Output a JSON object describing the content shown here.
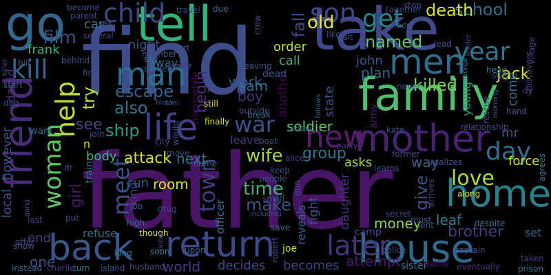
{
  "words": [
    {
      "text": "father",
      "color": "#471466"
    },
    {
      "text": "find",
      "color": "#3d4e8a"
    },
    {
      "text": "take",
      "color": "#3f4889"
    },
    {
      "text": "tell",
      "color": "#2fb47c"
    },
    {
      "text": "go",
      "color": "#31688e"
    },
    {
      "text": "family",
      "color": "#4ac16d"
    },
    {
      "text": "friend",
      "color": "#472c7a"
    },
    {
      "text": "mother",
      "color": "#482374"
    },
    {
      "text": "house",
      "color": "#2f6b8e"
    },
    {
      "text": "return",
      "color": "#3e4989"
    },
    {
      "text": "back",
      "color": "#38588c"
    },
    {
      "text": "home",
      "color": "#26828e"
    },
    {
      "text": "men",
      "color": "#2e6e8e"
    },
    {
      "text": "life",
      "color": "#424086"
    },
    {
      "text": "new",
      "color": "#5a1a6e"
    },
    {
      "text": "man",
      "color": "#2d708e"
    },
    {
      "text": "help",
      "color": "#c2df23"
    },
    {
      "text": "woman",
      "color": "#5cc863"
    },
    {
      "text": "kill",
      "color": "#31678e"
    },
    {
      "text": "child",
      "color": "#3f4788"
    },
    {
      "text": "son",
      "color": "#404588"
    },
    {
      "text": "get",
      "color": "#24878e"
    },
    {
      "text": "year",
      "color": "#2a788e"
    },
    {
      "text": "day",
      "color": "#2d718e"
    },
    {
      "text": "love",
      "color": "#addc30"
    },
    {
      "text": "later",
      "color": "#46327e"
    },
    {
      "text": "war",
      "color": "#3b518b"
    },
    {
      "text": "town",
      "color": "#443983"
    },
    {
      "text": "meet",
      "color": "#3a538b"
    },
    {
      "text": "school",
      "color": "#2c728e"
    },
    {
      "text": "death",
      "color": "#d8e219"
    },
    {
      "text": "jack",
      "color": "#d2e21b"
    },
    {
      "text": "film",
      "color": "#3b528b"
    },
    {
      "text": "fall",
      "color": "#3e4a89"
    },
    {
      "text": "old",
      "color": "#e7e419"
    },
    {
      "text": "named",
      "color": "#5ec962"
    },
    {
      "text": "killed",
      "color": "#7ad151"
    },
    {
      "text": "escape",
      "color": "#33628d"
    },
    {
      "text": "begin",
      "color": "#472f7d"
    },
    {
      "text": "try",
      "color": "#b5de2b"
    },
    {
      "text": "also",
      "color": "#29798e"
    },
    {
      "text": "see",
      "color": "#414487"
    },
    {
      "text": "ship",
      "color": "#1f9e89"
    },
    {
      "text": "wife",
      "color": "#a2da37"
    },
    {
      "text": "time",
      "color": "#35b779"
    },
    {
      "text": "make",
      "color": "#3b528b"
    },
    {
      "text": "give",
      "color": "#3b528b"
    },
    {
      "text": "girl",
      "color": "#481a6c"
    },
    {
      "text": "attack",
      "color": "#dde318"
    },
    {
      "text": "work",
      "color": "#38598c"
    },
    {
      "text": "soldier",
      "color": "#5ec962"
    },
    {
      "text": "group",
      "color": "#2a788e"
    },
    {
      "text": "money",
      "color": "#90d743"
    },
    {
      "text": "brother",
      "color": "#443983"
    },
    {
      "text": "leaf",
      "color": "#27808e"
    },
    {
      "text": "come",
      "color": "#2e6f8e"
    },
    {
      "text": "force",
      "color": "#d0e11c"
    },
    {
      "text": "way",
      "color": "#34618d"
    },
    {
      "text": "world",
      "color": "#453781"
    },
    {
      "text": "attempt",
      "color": "#481f70"
    },
    {
      "text": "becomes",
      "color": "#424086"
    },
    {
      "text": "decides",
      "color": "#3e4c8a"
    },
    {
      "text": "next",
      "color": "#2c728e"
    },
    {
      "text": "room",
      "color": "#d8e219"
    },
    {
      "text": "run",
      "color": "#38598c"
    },
    {
      "text": "king",
      "color": "#3e4a89"
    },
    {
      "text": "leave",
      "color": "#453781"
    },
    {
      "text": "body",
      "color": "#35b779"
    },
    {
      "text": "boy",
      "color": "#46337f"
    },
    {
      "text": "sam",
      "color": "#2c728e"
    },
    {
      "text": "another",
      "color": "#440154"
    },
    {
      "text": "state",
      "color": "#3e4989"
    },
    {
      "text": "plan",
      "color": "#30698e"
    },
    {
      "text": "john",
      "color": "#39568c"
    },
    {
      "text": "call",
      "color": "#37b878"
    },
    {
      "text": "order",
      "color": "#bddf26"
    },
    {
      "text": "night",
      "color": "#39558c"
    },
    {
      "text": "frank",
      "color": "#35b779"
    },
    {
      "text": "david",
      "color": "#482878"
    },
    {
      "text": "however",
      "color": "#3b528b"
    },
    {
      "text": "local",
      "color": "#3b518b"
    },
    {
      "text": "end",
      "color": "#443a83"
    },
    {
      "text": "one",
      "color": "#3e4c8a"
    },
    {
      "text": "train",
      "color": "#2a788e"
    },
    {
      "text": "refuse",
      "color": "#2e6e8e"
    },
    {
      "text": "meanwhile",
      "color": "#440154"
    },
    {
      "text": "officer",
      "color": "#2c728e"
    },
    {
      "text": "fight",
      "color": "#3b528b"
    },
    {
      "text": "reveals",
      "color": "#31688e"
    },
    {
      "text": "daughter",
      "color": "#46337f"
    },
    {
      "text": "asks",
      "color": "#a5db36"
    },
    {
      "text": "young",
      "color": "#1f9e89"
    },
    {
      "text": "army",
      "color": "#481b6d"
    },
    {
      "text": "mr",
      "color": "#39568c"
    },
    {
      "text": "car",
      "color": "#2a788e"
    },
    {
      "text": "away",
      "color": "#2c728e"
    },
    {
      "text": "dead",
      "color": "#39568c"
    },
    {
      "text": "party",
      "color": "#472d7b"
    },
    {
      "text": "want",
      "color": "#2c718e"
    },
    {
      "text": "n",
      "color": "#d2e21b"
    },
    {
      "text": "set",
      "color": "#31688e"
    },
    {
      "text": "captain",
      "color": "#3e4989"
    },
    {
      "text": "police",
      "color": "#3e4a89"
    },
    {
      "text": "camp",
      "color": "#3b528b"
    },
    {
      "text": "sister",
      "color": "#2c728e"
    },
    {
      "text": "battle",
      "color": "#471365"
    },
    {
      "text": "prison",
      "color": "#2a788e"
    },
    {
      "text": "eventually",
      "color": "#46337f"
    },
    {
      "text": "taken",
      "color": "#443a83"
    },
    {
      "text": "joe",
      "color": "#b5de2b"
    },
    {
      "text": "robert",
      "color": "#3b518b"
    },
    {
      "text": "upon",
      "color": "#31688e"
    },
    {
      "text": "though",
      "color": "#dde318"
    },
    {
      "text": "soon",
      "color": "#24878e"
    },
    {
      "text": "living",
      "color": "#414487"
    },
    {
      "text": "long",
      "color": "#2c728e"
    },
    {
      "text": "husband",
      "color": "#3b528b"
    },
    {
      "text": "island",
      "color": "#3e4c8a"
    },
    {
      "text": "turn",
      "color": "#2a788e"
    },
    {
      "text": "charlie",
      "color": "#46337f"
    },
    {
      "text": "instead",
      "color": "#31688e"
    },
    {
      "text": "show",
      "color": "#3b528b"
    },
    {
      "text": "last",
      "color": "#443983"
    },
    {
      "text": "offer",
      "color": "#414487"
    },
    {
      "text": "put",
      "color": "#3e4989"
    },
    {
      "text": "dr",
      "color": "#3b528b"
    },
    {
      "text": "high",
      "color": "#2c728e"
    },
    {
      "text": "drug",
      "color": "#3e4a89"
    },
    {
      "text": "job",
      "color": "#39558c"
    },
    {
      "text": "name",
      "color": "#2c728e"
    },
    {
      "text": "move",
      "color": "#414487"
    },
    {
      "text": "city",
      "color": "#3e4989"
    },
    {
      "text": "would",
      "color": "#3b528b"
    },
    {
      "text": "finally",
      "color": "#d2e21b"
    },
    {
      "text": "boat",
      "color": "#3b528b"
    },
    {
      "text": "know",
      "color": "#31688e"
    },
    {
      "text": "alice",
      "color": "#443983"
    },
    {
      "text": "keep",
      "color": "#3e4a89"
    },
    {
      "text": "people",
      "color": "#3b528b"
    },
    {
      "text": "gun",
      "color": "#3e4c8a"
    },
    {
      "text": "small",
      "color": "#39568c"
    },
    {
      "text": "including",
      "color": "#3b528b"
    },
    {
      "text": "save",
      "color": "#2c728e"
    },
    {
      "text": "secret",
      "color": "#3e4989"
    },
    {
      "text": "must",
      "color": "#3b528b"
    },
    {
      "text": "sent",
      "color": "#39568c"
    },
    {
      "text": "learns",
      "color": "#3e4a89"
    },
    {
      "text": "arrives",
      "color": "#46337f"
    },
    {
      "text": "along",
      "color": "#dde318"
    },
    {
      "text": "despite",
      "color": "#2c728e"
    },
    {
      "text": "agrees",
      "color": "#2c728e"
    },
    {
      "text": "realizes",
      "color": "#3e4a89"
    },
    {
      "text": "former",
      "color": "#3e4c8a"
    },
    {
      "text": "relationship",
      "color": "#3e4989"
    },
    {
      "text": "hand",
      "color": "#3b528b"
    },
    {
      "text": "stay",
      "color": "#3b528b"
    },
    {
      "text": "head",
      "color": "#2c728e"
    },
    {
      "text": "rescue",
      "color": "#3e4989"
    },
    {
      "text": "morning",
      "color": "#3b528b"
    },
    {
      "text": "never",
      "color": "#3e4c8a"
    },
    {
      "text": "kate",
      "color": "#3b528b"
    },
    {
      "text": "dy",
      "color": "#3e4a89"
    },
    {
      "text": "village",
      "color": "#3e4989"
    },
    {
      "text": "discovers",
      "color": "#46337f"
    },
    {
      "text": "follows",
      "color": "#31688e"
    },
    {
      "text": "place",
      "color": "#3b528b"
    },
    {
      "text": "lead",
      "color": "#3b528b"
    },
    {
      "text": "like",
      "color": "#3e4a89"
    },
    {
      "text": "visit",
      "color": "#39568c"
    },
    {
      "text": "crew",
      "color": "#3b528b"
    },
    {
      "text": "due",
      "color": "#2c728e"
    },
    {
      "text": "travel",
      "color": "#3e4a89"
    },
    {
      "text": "stop",
      "color": "#3b528b"
    },
    {
      "text": "together",
      "color": "#3e4989"
    },
    {
      "text": "leader",
      "color": "#3e4c8a"
    },
    {
      "text": "george",
      "color": "#2c728e"
    },
    {
      "text": "become",
      "color": "#3b528b"
    },
    {
      "text": "parent",
      "color": "#3e4a89"
    },
    {
      "text": "sex",
      "color": "#3b528b"
    },
    {
      "text": "several",
      "color": "#3e4989"
    },
    {
      "text": "member",
      "color": "#39568c"
    },
    {
      "text": "part",
      "color": "#3b528b"
    },
    {
      "text": "water",
      "color": "#3e4a89"
    },
    {
      "text": "say",
      "color": "#2c728e"
    },
    {
      "text": "fire",
      "color": "#3b528b"
    },
    {
      "text": "behind",
      "color": "#3e4989"
    },
    {
      "text": "student",
      "color": "#3b528b"
    },
    {
      "text": "leaving",
      "color": "#3b528b"
    },
    {
      "text": "black",
      "color": "#3e4a89"
    },
    {
      "text": "tom",
      "color": "#3b528b"
    },
    {
      "text": "join",
      "color": "#3e4c8a"
    },
    {
      "text": "still",
      "color": "#d8e219"
    },
    {
      "text": "outside",
      "color": "#3b528b"
    },
    {
      "text": "break",
      "color": "#2c728e"
    },
    {
      "text": "start",
      "color": "#3b528b"
    },
    {
      "text": "dog",
      "color": "#3e4989"
    },
    {
      "text": "bill",
      "color": "#39568c"
    },
    {
      "text": "gang",
      "color": "#3e4a89"
    },
    {
      "text": "killer",
      "color": "#3b528b"
    }
  ]
}
